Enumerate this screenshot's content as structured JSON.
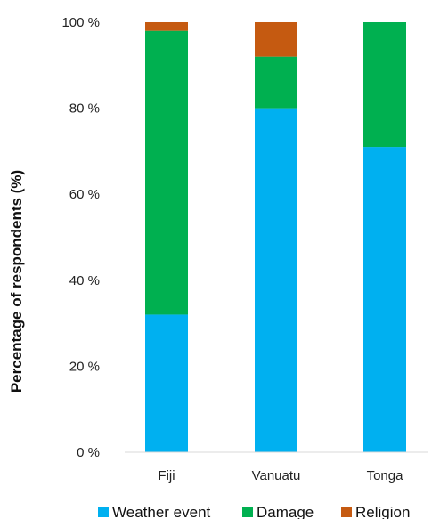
{
  "chart_data": {
    "type": "bar",
    "stacked": true,
    "categories": [
      "Fiji",
      "Vanuatu",
      "Tonga"
    ],
    "series": [
      {
        "name": "Weather event",
        "color": "#00b0f0",
        "values": [
          32,
          80,
          71
        ]
      },
      {
        "name": "Damage",
        "color": "#00b050",
        "values": [
          66,
          12,
          29
        ]
      },
      {
        "name": "Religion",
        "color": "#c55a11",
        "values": [
          2,
          8,
          0
        ]
      }
    ],
    "ylabel": "Percentage of respondents (%)",
    "ylim": [
      0,
      100
    ],
    "yticks": [
      0,
      20,
      40,
      60,
      80,
      100
    ],
    "ytick_labels": [
      "0 %",
      "20 %",
      "40 %",
      "60 %",
      "80 %",
      "100 %"
    ],
    "grid": false,
    "legend_position": "bottom"
  }
}
